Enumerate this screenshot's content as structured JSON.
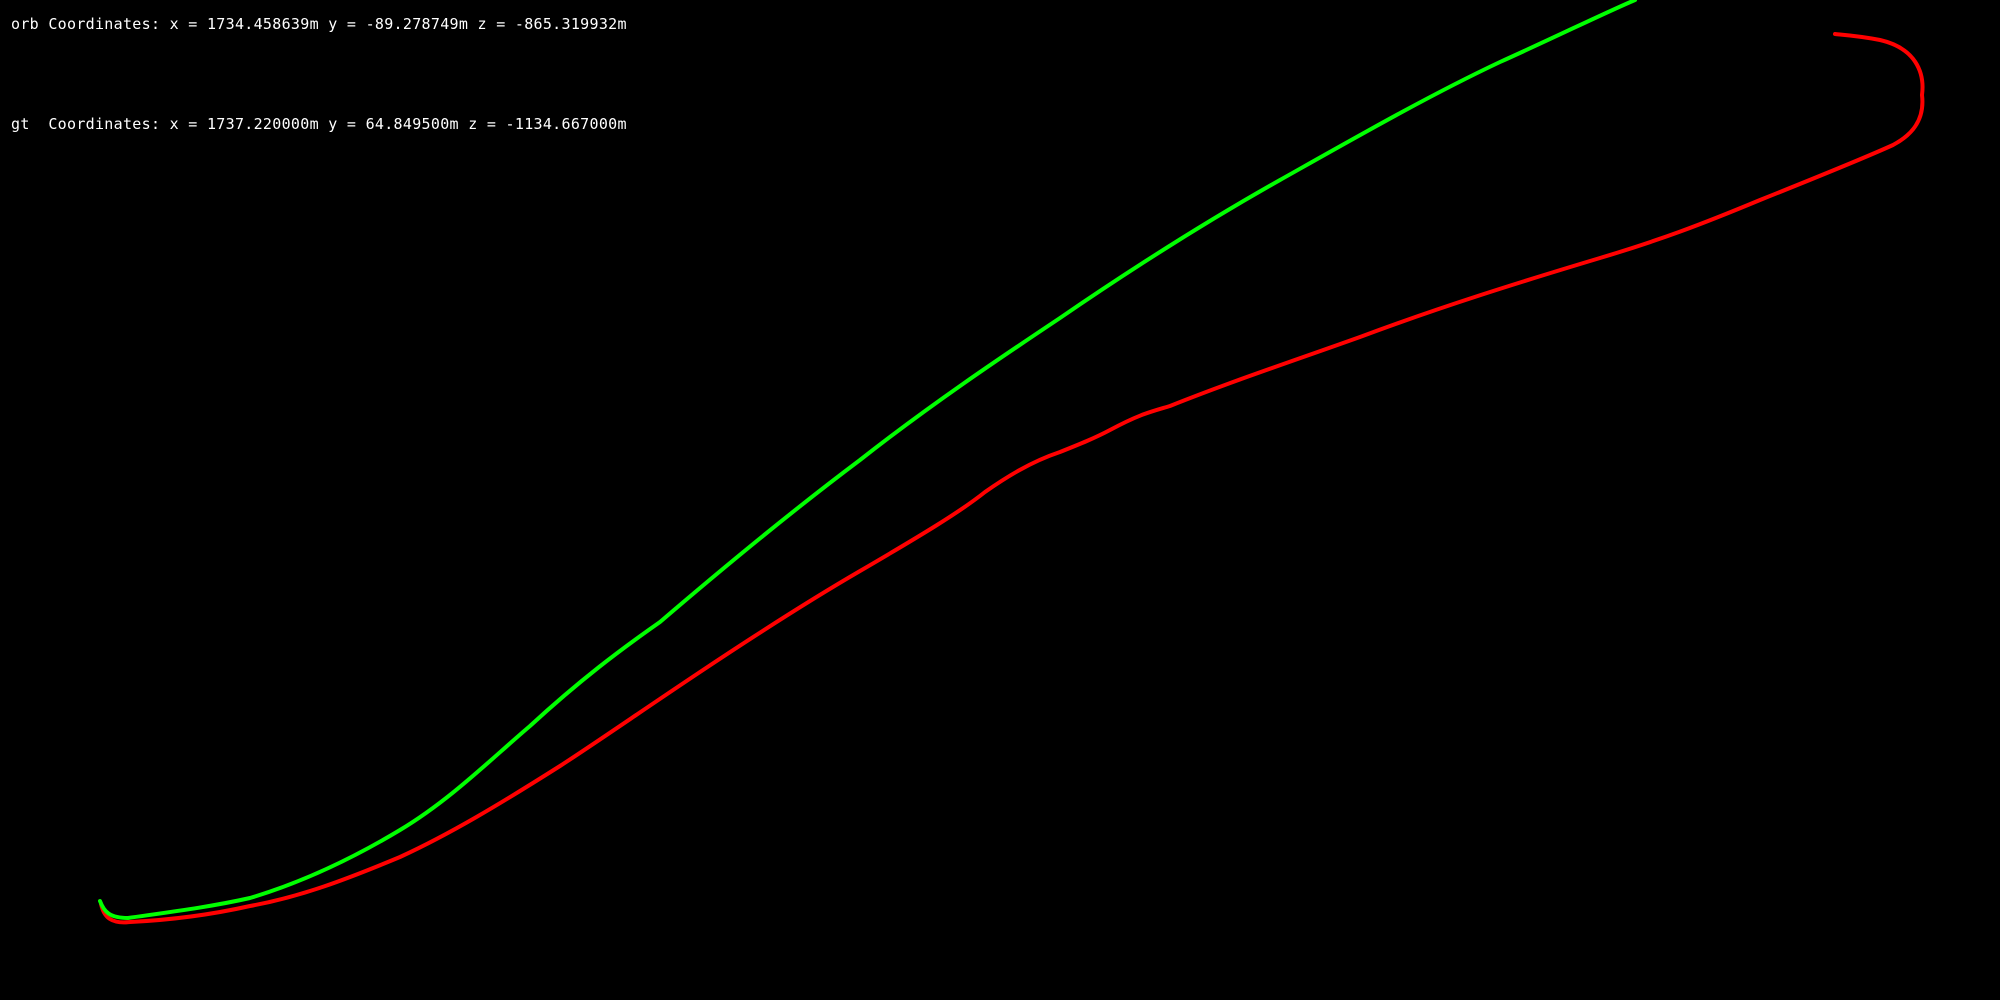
{
  "overlay": {
    "orb_text": "orb Coordinates: x = 1734.458639m y = -89.278749m z = -865.319932m",
    "gt_text": "gt  Coordinates: x = 1737.220000m y = 64.849500m z = -1134.667000m"
  },
  "trajectories": {
    "orb": {
      "icon": "trajectory-line",
      "color": "#00ff00"
    },
    "gt": {
      "icon": "trajectory-line",
      "color": "#ff0000"
    }
  }
}
